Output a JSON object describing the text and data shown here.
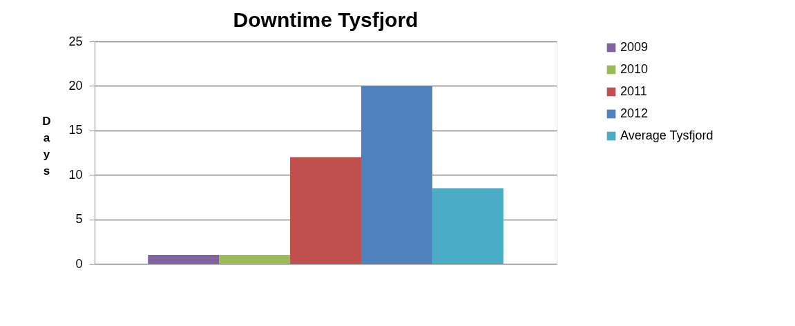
{
  "chart_data": {
    "type": "bar",
    "title": "Downtime Tysfjord",
    "ylabel": "Days",
    "categories": [
      null
    ],
    "series": [
      {
        "name": "2009",
        "color": "#8064a2",
        "values": [
          1
        ]
      },
      {
        "name": "2010",
        "color": "#9bbb59",
        "values": [
          1
        ]
      },
      {
        "name": "2011",
        "color": "#c0504d",
        "values": [
          12
        ]
      },
      {
        "name": "2012",
        "color": "#4f81bd",
        "values": [
          20
        ]
      },
      {
        "name": "Average Tysfjord",
        "color": "#4bacc6",
        "values": [
          8.5
        ]
      }
    ],
    "ylim": [
      0,
      25
    ],
    "yticks": [
      0,
      5,
      10,
      15,
      20,
      25
    ],
    "grid": "y",
    "legend": "right"
  }
}
